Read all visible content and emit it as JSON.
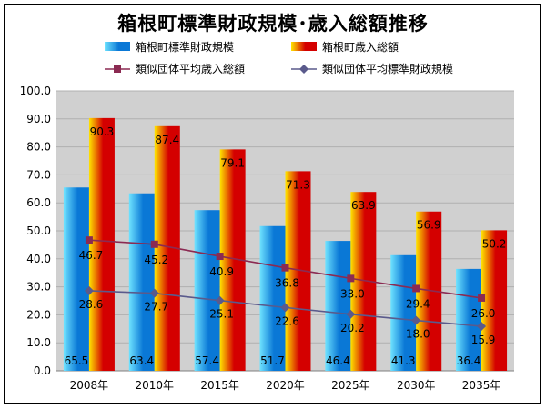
{
  "title": "箱根町標準財政規模･歳入総額推移",
  "colors": {
    "bar_standard_light": "#6fe3ff",
    "bar_standard_dark": "#0a78d6",
    "bar_revenue_light": "#ffe500",
    "bar_revenue_dark": "#d40000",
    "line_revenue": "#8b2a52",
    "line_standard": "#5a5a8c",
    "plot_bg": "#d0d0d0"
  },
  "chart_data": {
    "type": "bar",
    "title": "箱根町標準財政規模･歳入総額推移",
    "categories": [
      "2008年",
      "2010年",
      "2015年",
      "2020年",
      "2025年",
      "2030年",
      "2035年"
    ],
    "ylim": [
      0,
      100
    ],
    "ytick_labels": [
      "0.0",
      "10.0",
      "20.0",
      "30.0",
      "40.0",
      "50.0",
      "60.0",
      "70.0",
      "80.0",
      "90.0",
      "100.0"
    ],
    "grid": true,
    "legend_position": "top",
    "series": [
      {
        "name": "箱根町標準財政規模",
        "kind": "bar",
        "values": [
          65.5,
          63.4,
          57.4,
          51.7,
          46.4,
          41.3,
          36.4
        ],
        "labels": [
          "65.5",
          "63.4",
          "57.4",
          "51.7",
          "46.4",
          "41.3",
          "36.4"
        ]
      },
      {
        "name": "箱根町歳入総額",
        "kind": "bar",
        "values": [
          90.3,
          87.4,
          79.1,
          71.3,
          63.9,
          56.9,
          50.2
        ],
        "labels": [
          "90.3",
          "87.4",
          "79.1",
          "71.3",
          "63.9",
          "56.9",
          "50.2"
        ]
      },
      {
        "name": "類似団体平均歳入総額",
        "kind": "line",
        "marker": "square",
        "values": [
          46.7,
          45.2,
          40.9,
          36.8,
          33.0,
          29.4,
          26.0
        ],
        "labels": [
          "46.7",
          "45.2",
          "40.9",
          "36.8",
          "33.0",
          "29.4",
          "26.0"
        ]
      },
      {
        "name": "類似団体平均標準財政規模",
        "kind": "line",
        "marker": "diamond",
        "values": [
          28.6,
          27.7,
          25.1,
          22.6,
          20.2,
          18.0,
          15.9
        ],
        "labels": [
          "28.6",
          "27.7",
          "25.1",
          "22.6",
          "20.2",
          "18.0",
          "15.9"
        ]
      }
    ]
  }
}
